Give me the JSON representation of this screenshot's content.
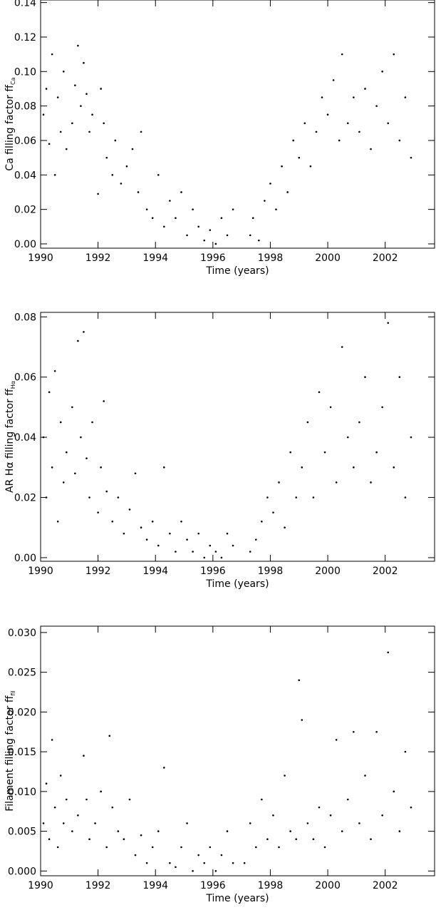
{
  "chart_data": [
    {
      "type": "scatter",
      "xlabel": "Time (years)",
      "ylabel": "Ca filling factor ff",
      "ylabel_sub": "Ca",
      "color": "#000000",
      "xlim": [
        1990,
        2003.72
      ],
      "ylim": [
        -0.0025,
        0.1415
      ],
      "xticks": [
        1990,
        1992,
        1994,
        1996,
        1998,
        2000,
        2002
      ],
      "yticks": [
        {
          "value": 0,
          "label": "0.00"
        },
        {
          "value": 0.02,
          "label": "0.02"
        },
        {
          "value": 0.04,
          "label": "0.04"
        },
        {
          "value": 0.06,
          "label": "0.06"
        },
        {
          "value": 0.08,
          "label": "0.08"
        },
        {
          "value": 0.1,
          "label": "0.10"
        },
        {
          "value": 0.12,
          "label": "0.12"
        },
        {
          "value": 0.14,
          "label": "0.14"
        }
      ],
      "x": [
        1990.1,
        1990.2,
        1990.3,
        1990.4,
        1990.5,
        1990.6,
        1990.7,
        1990.8,
        1990.9,
        1991.1,
        1991.2,
        1991.3,
        1991.4,
        1991.5,
        1991.6,
        1991.7,
        1991.8,
        1992.0,
        1992.1,
        1992.2,
        1992.3,
        1992.5,
        1992.6,
        1992.8,
        1993.0,
        1993.2,
        1993.4,
        1993.5,
        1993.7,
        1993.9,
        1994.1,
        1994.3,
        1994.5,
        1994.7,
        1994.9,
        1995.1,
        1995.3,
        1995.5,
        1995.7,
        1995.9,
        1996.1,
        1996.3,
        1996.5,
        1996.7,
        1997.3,
        1997.4,
        1997.6,
        1997.8,
        1998.0,
        1998.2,
        1998.4,
        1998.6,
        1998.8,
        1999.0,
        1999.2,
        1999.4,
        1999.6,
        1999.8,
        2000.0,
        2000.2,
        2000.4,
        2000.5,
        2000.7,
        2000.9,
        2001.1,
        2001.3,
        2001.5,
        2001.7,
        2001.9,
        2002.1,
        2002.3,
        2002.5,
        2002.7,
        2002.9
      ],
      "y": [
        0.075,
        0.09,
        0.058,
        0.11,
        0.04,
        0.085,
        0.065,
        0.1,
        0.055,
        0.07,
        0.092,
        0.115,
        0.08,
        0.105,
        0.087,
        0.065,
        0.075,
        0.029,
        0.09,
        0.07,
        0.05,
        0.04,
        0.06,
        0.035,
        0.045,
        0.055,
        0.03,
        0.065,
        0.02,
        0.015,
        0.04,
        0.01,
        0.025,
        0.015,
        0.03,
        0.005,
        0.02,
        0.01,
        0.002,
        0.008,
        0,
        0.015,
        0.005,
        0.02,
        0.005,
        0.015,
        0.002,
        0.025,
        0.035,
        0.02,
        0.045,
        0.03,
        0.06,
        0.05,
        0.07,
        0.045,
        0.065,
        0.085,
        0.075,
        0.095,
        0.06,
        0.11,
        0.07,
        0.085,
        0.065,
        0.09,
        0.055,
        0.08,
        0.1,
        0.07,
        0.11,
        0.06,
        0.085,
        0.05
      ]
    },
    {
      "type": "scatter",
      "xlabel": "Time (years)",
      "ylabel": "AR Hα filling factor ff",
      "ylabel_sub": "Hα",
      "color": "#000000",
      "xlim": [
        1990,
        2003.72
      ],
      "ylim": [
        -0.0012,
        0.0815
      ],
      "xticks": [
        1990,
        1992,
        1994,
        1996,
        1998,
        2000,
        2002
      ],
      "yticks": [
        {
          "value": 0,
          "label": "0.00"
        },
        {
          "value": 0.02,
          "label": "0.02"
        },
        {
          "value": 0.04,
          "label": "0.04"
        },
        {
          "value": 0.06,
          "label": "0.06"
        },
        {
          "value": 0.08,
          "label": "0.08"
        }
      ],
      "x": [
        1990.1,
        1990.2,
        1990.3,
        1990.4,
        1990.5,
        1990.6,
        1990.7,
        1990.8,
        1990.9,
        1991.1,
        1991.2,
        1991.3,
        1991.4,
        1991.5,
        1991.6,
        1991.7,
        1991.8,
        1992.0,
        1992.1,
        1992.2,
        1992.3,
        1992.5,
        1992.7,
        1992.9,
        1993.1,
        1993.3,
        1993.5,
        1993.7,
        1993.9,
        1994.1,
        1994.3,
        1994.5,
        1994.7,
        1994.9,
        1995.1,
        1995.3,
        1995.5,
        1995.7,
        1995.9,
        1996.1,
        1996.3,
        1996.5,
        1996.7,
        1997.3,
        1997.5,
        1997.7,
        1997.9,
        1998.1,
        1998.3,
        1998.5,
        1998.7,
        1998.9,
        1999.1,
        1999.3,
        1999.5,
        1999.7,
        1999.9,
        2000.1,
        2000.3,
        2000.5,
        2000.7,
        2000.9,
        2001.1,
        2001.3,
        2001.5,
        2001.7,
        2001.9,
        2002.1,
        2002.3,
        2002.5,
        2002.7,
        2002.9
      ],
      "y": [
        0.04,
        0.02,
        0.055,
        0.03,
        0.062,
        0.012,
        0.045,
        0.025,
        0.035,
        0.05,
        0.028,
        0.072,
        0.04,
        0.075,
        0.033,
        0.02,
        0.045,
        0.015,
        0.03,
        0.052,
        0.022,
        0.012,
        0.02,
        0.008,
        0.016,
        0.028,
        0.01,
        0.006,
        0.012,
        0.004,
        0.03,
        0.008,
        0.002,
        0.012,
        0.006,
        0.002,
        0.008,
        0,
        0.004,
        0.002,
        0,
        0.008,
        0.004,
        0.002,
        0.006,
        0.012,
        0.02,
        0.015,
        0.025,
        0.01,
        0.035,
        0.02,
        0.03,
        0.045,
        0.02,
        0.055,
        0.035,
        0.05,
        0.025,
        0.07,
        0.04,
        0.03,
        0.045,
        0.06,
        0.025,
        0.035,
        0.05,
        0.078,
        0.03,
        0.06,
        0.02,
        0.04
      ]
    },
    {
      "type": "scatter",
      "xlabel": "Time (years)",
      "ylabel": "Filament filling factor ff",
      "ylabel_sub": "fil",
      "color": "#000000",
      "xlim": [
        1990,
        2003.72
      ],
      "ylim": [
        -0.0006,
        0.0308
      ],
      "xticks": [
        1990,
        1992,
        1994,
        1996,
        1998,
        2000,
        2002
      ],
      "yticks": [
        {
          "value": 0,
          "label": "0.000"
        },
        {
          "value": 0.005,
          "label": "0.005"
        },
        {
          "value": 0.01,
          "label": "0.010"
        },
        {
          "value": 0.015,
          "label": "0.015"
        },
        {
          "value": 0.02,
          "label": "0.020"
        },
        {
          "value": 0.025,
          "label": "0.025"
        },
        {
          "value": 0.03,
          "label": "0.030"
        }
      ],
      "x": [
        1990.1,
        1990.2,
        1990.3,
        1990.4,
        1990.5,
        1990.6,
        1990.7,
        1990.8,
        1990.9,
        1991.1,
        1991.3,
        1991.5,
        1991.6,
        1991.7,
        1991.9,
        1992.1,
        1992.3,
        1992.4,
        1992.5,
        1992.7,
        1992.9,
        1993.1,
        1993.3,
        1993.5,
        1993.7,
        1993.9,
        1994.1,
        1994.3,
        1994.5,
        1994.7,
        1994.9,
        1995.1,
        1995.3,
        1995.5,
        1995.7,
        1995.9,
        1996.1,
        1996.3,
        1996.5,
        1996.7,
        1997.1,
        1997.3,
        1997.5,
        1997.7,
        1997.9,
        1998.1,
        1998.3,
        1998.5,
        1998.7,
        1998.9,
        1999.0,
        1999.1,
        1999.3,
        1999.5,
        1999.7,
        1999.9,
        2000.1,
        2000.3,
        2000.5,
        2000.7,
        2000.9,
        2001.1,
        2001.3,
        2001.5,
        2001.7,
        2001.9,
        2002.1,
        2002.3,
        2002.5,
        2002.7,
        2002.9
      ],
      "y": [
        0.006,
        0.011,
        0.004,
        0.0165,
        0.008,
        0.003,
        0.012,
        0.006,
        0.009,
        0.005,
        0.007,
        0.0145,
        0.009,
        0.004,
        0.006,
        0.01,
        0.003,
        0.017,
        0.008,
        0.005,
        0.004,
        0.009,
        0.002,
        0.0045,
        0.001,
        0.003,
        0.005,
        0.013,
        0.001,
        0.0005,
        0.003,
        0.006,
        0,
        0.002,
        0.001,
        0.003,
        0,
        0.002,
        0.005,
        0.001,
        0.001,
        0.006,
        0.003,
        0.009,
        0.004,
        0.007,
        0.003,
        0.012,
        0.005,
        0.004,
        0.024,
        0.019,
        0.006,
        0.004,
        0.008,
        0.003,
        0.007,
        0.0165,
        0.005,
        0.009,
        0.0175,
        0.006,
        0.012,
        0.004,
        0.0175,
        0.007,
        0.0275,
        0.01,
        0.005,
        0.015,
        0.008
      ]
    }
  ]
}
